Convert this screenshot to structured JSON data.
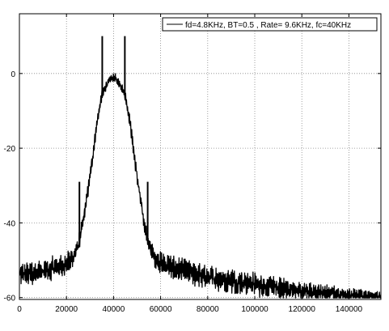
{
  "chart_data": {
    "type": "line",
    "title": "",
    "xlabel": "",
    "ylabel": "",
    "xlim": [
      0,
      153600
    ],
    "ylim": [
      -60.5,
      16
    ],
    "grid": true,
    "legend_position": "top-right",
    "x_ticks": [
      0,
      20000,
      40000,
      60000,
      80000,
      100000,
      120000,
      140000
    ],
    "x_tick_labels": [
      "0",
      "20000",
      "40000",
      "60000",
      "80000",
      "100000",
      "120000",
      "140000"
    ],
    "y_ticks": [
      0,
      -20,
      -40,
      -60
    ],
    "y_tick_labels": [
      "0",
      "-20",
      "-40",
      "-60"
    ],
    "line_color": "#000000",
    "series": [
      {
        "name": "fd=4.8KHz, BT=0.5 , Rate= 9.6KHz, fc=40KHz",
        "envelope_x": [
          0,
          5000,
          10000,
          15000,
          20000,
          23000,
          25000,
          27000,
          29000,
          31000,
          33000,
          35000,
          37000,
          39000,
          40000,
          41000,
          43000,
          45000,
          47000,
          49000,
          51000,
          53000,
          55000,
          57000,
          60000,
          65000,
          70000,
          80000,
          90000,
          100000,
          110000,
          120000,
          130000,
          140000,
          150000,
          153600
        ],
        "envelope_y": [
          -54,
          -53.5,
          -53,
          -52,
          -51,
          -49,
          -46,
          -40,
          -32,
          -23,
          -13,
          -6,
          -3,
          -1.5,
          -1,
          -1.5,
          -3,
          -6,
          -13,
          -23,
          -32,
          -40,
          -46,
          -49,
          -51,
          -52,
          -53,
          -54.5,
          -55.5,
          -56.5,
          -57.5,
          -58.2,
          -58.8,
          -59.3,
          -59.6,
          -59.7
        ],
        "ripple_db": [
          [
            0,
            3.5
          ],
          [
            20000,
            3.5
          ],
          [
            25000,
            2.5
          ],
          [
            31000,
            2.0
          ],
          [
            37000,
            1.5
          ],
          [
            43000,
            1.5
          ],
          [
            49000,
            2.0
          ],
          [
            55000,
            2.5
          ],
          [
            60000,
            3.5
          ],
          [
            100000,
            3.5
          ],
          [
            140000,
            2.0
          ],
          [
            153600,
            1.5
          ]
        ],
        "spikes": [
          {
            "x": 25500,
            "y": -29
          },
          {
            "x": 35200,
            "y": 10
          },
          {
            "x": 44800,
            "y": 10
          },
          {
            "x": 54500,
            "y": -29
          }
        ]
      }
    ]
  }
}
